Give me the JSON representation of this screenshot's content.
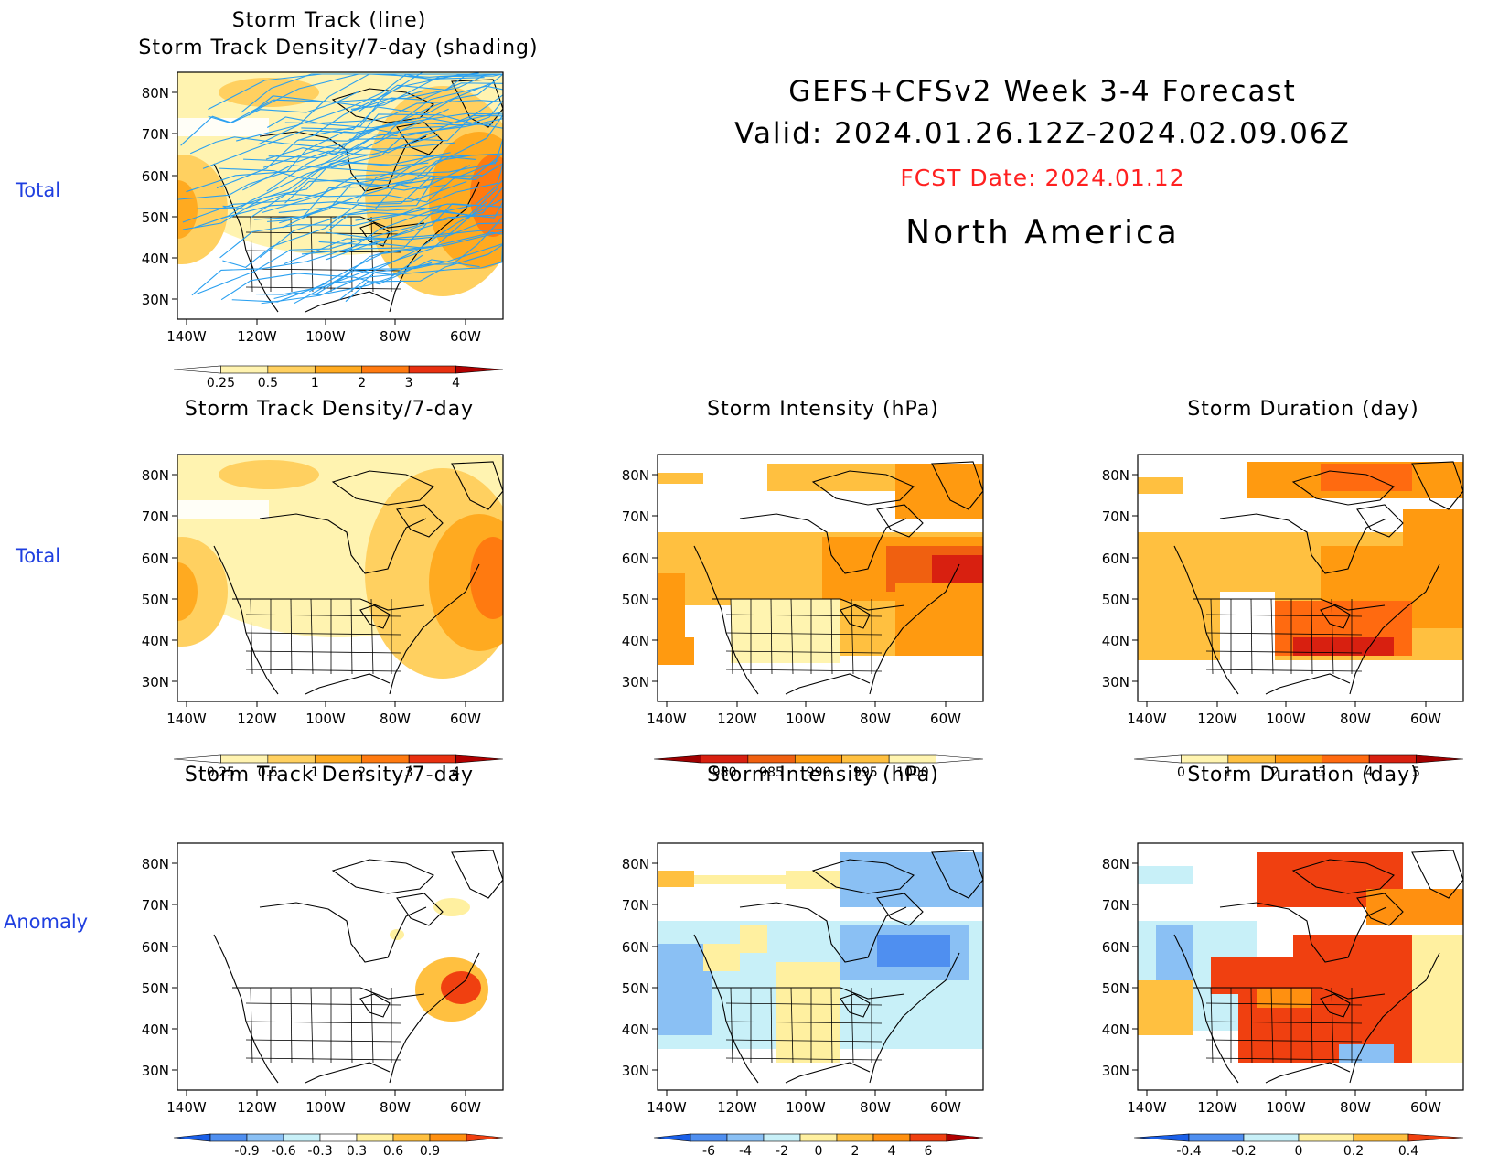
{
  "header": {
    "line1": "GEFS+CFSv2 Week 3-4 Forecast",
    "line2": "Valid: 2024.01.26.12Z-2024.02.09.06Z",
    "fcst": "FCST Date: 2024.01.12",
    "region": "North America",
    "fcst_color": "#ff2020"
  },
  "row_labels": {
    "r1": "Total",
    "r2": "Total",
    "r3": "Anomaly"
  },
  "axes": {
    "lat_ticks": [
      "80N",
      "70N",
      "60N",
      "50N",
      "40N",
      "30N"
    ],
    "lon_ticks": [
      "140W",
      "120W",
      "100W",
      "80W",
      "60W"
    ]
  },
  "panels": {
    "p1": {
      "title1": "Storm Track (line)",
      "title2": "Storm Track Density/7-day (shading)"
    },
    "p2": {
      "title": "Storm Track Density/7-day"
    },
    "p3": {
      "title": "Storm Intensity (hPa)"
    },
    "p4": {
      "title": "Storm Duration (day)"
    },
    "p5": {
      "title": "Storm Track Density/7-day"
    },
    "p6": {
      "title": "Storm Intensity (hPa)"
    },
    "p7": {
      "title": "Storm Duration (day)"
    }
  },
  "colorbars": {
    "density": {
      "labels": [
        "0.25",
        "0.5",
        "1",
        "2",
        "3",
        "4"
      ],
      "colors": [
        "#ffffff",
        "#fff3b0",
        "#ffd060",
        "#ffaa20",
        "#ff7a10",
        "#e83010",
        "#b00000"
      ]
    },
    "intensity": {
      "labels": [
        "980",
        "985",
        "990",
        "995",
        "1000"
      ],
      "colors": [
        "#a00000",
        "#d82010",
        "#f06010",
        "#ff9a10",
        "#ffc040",
        "#fff4b0",
        "#ffffff"
      ]
    },
    "duration": {
      "labels": [
        "0",
        "1",
        "2",
        "3",
        "4",
        "5"
      ],
      "colors": [
        "#ffffff",
        "#fff4b0",
        "#ffc040",
        "#ff9a10",
        "#ff6a10",
        "#d82010",
        "#a00000"
      ]
    },
    "density_anom": {
      "labels": [
        "-0.9",
        "-0.6",
        "-0.3",
        "0.3",
        "0.6",
        "0.9"
      ],
      "colors": [
        "#1a5fe8",
        "#4f8ff0",
        "#8ac0f4",
        "#c8f0f8",
        "#ffffff",
        "#fff0a0",
        "#ffc040",
        "#ff9010",
        "#f04010"
      ]
    },
    "intensity_anom": {
      "labels": [
        "-6",
        "-4",
        "-2",
        "0",
        "2",
        "4",
        "6"
      ],
      "colors": [
        "#1a5fe8",
        "#4f8ff0",
        "#8ac0f4",
        "#c8f0f8",
        "#fff0a0",
        "#ffc040",
        "#ff9010",
        "#f04010",
        "#b00000"
      ]
    },
    "duration_anom": {
      "labels": [
        "-0.4",
        "-0.2",
        "0",
        "0.2",
        "0.4"
      ],
      "colors": [
        "#1a5fe8",
        "#4f8ff0",
        "#c8f0f8",
        "#fff0a0",
        "#ffc040",
        "#f04010"
      ]
    }
  }
}
